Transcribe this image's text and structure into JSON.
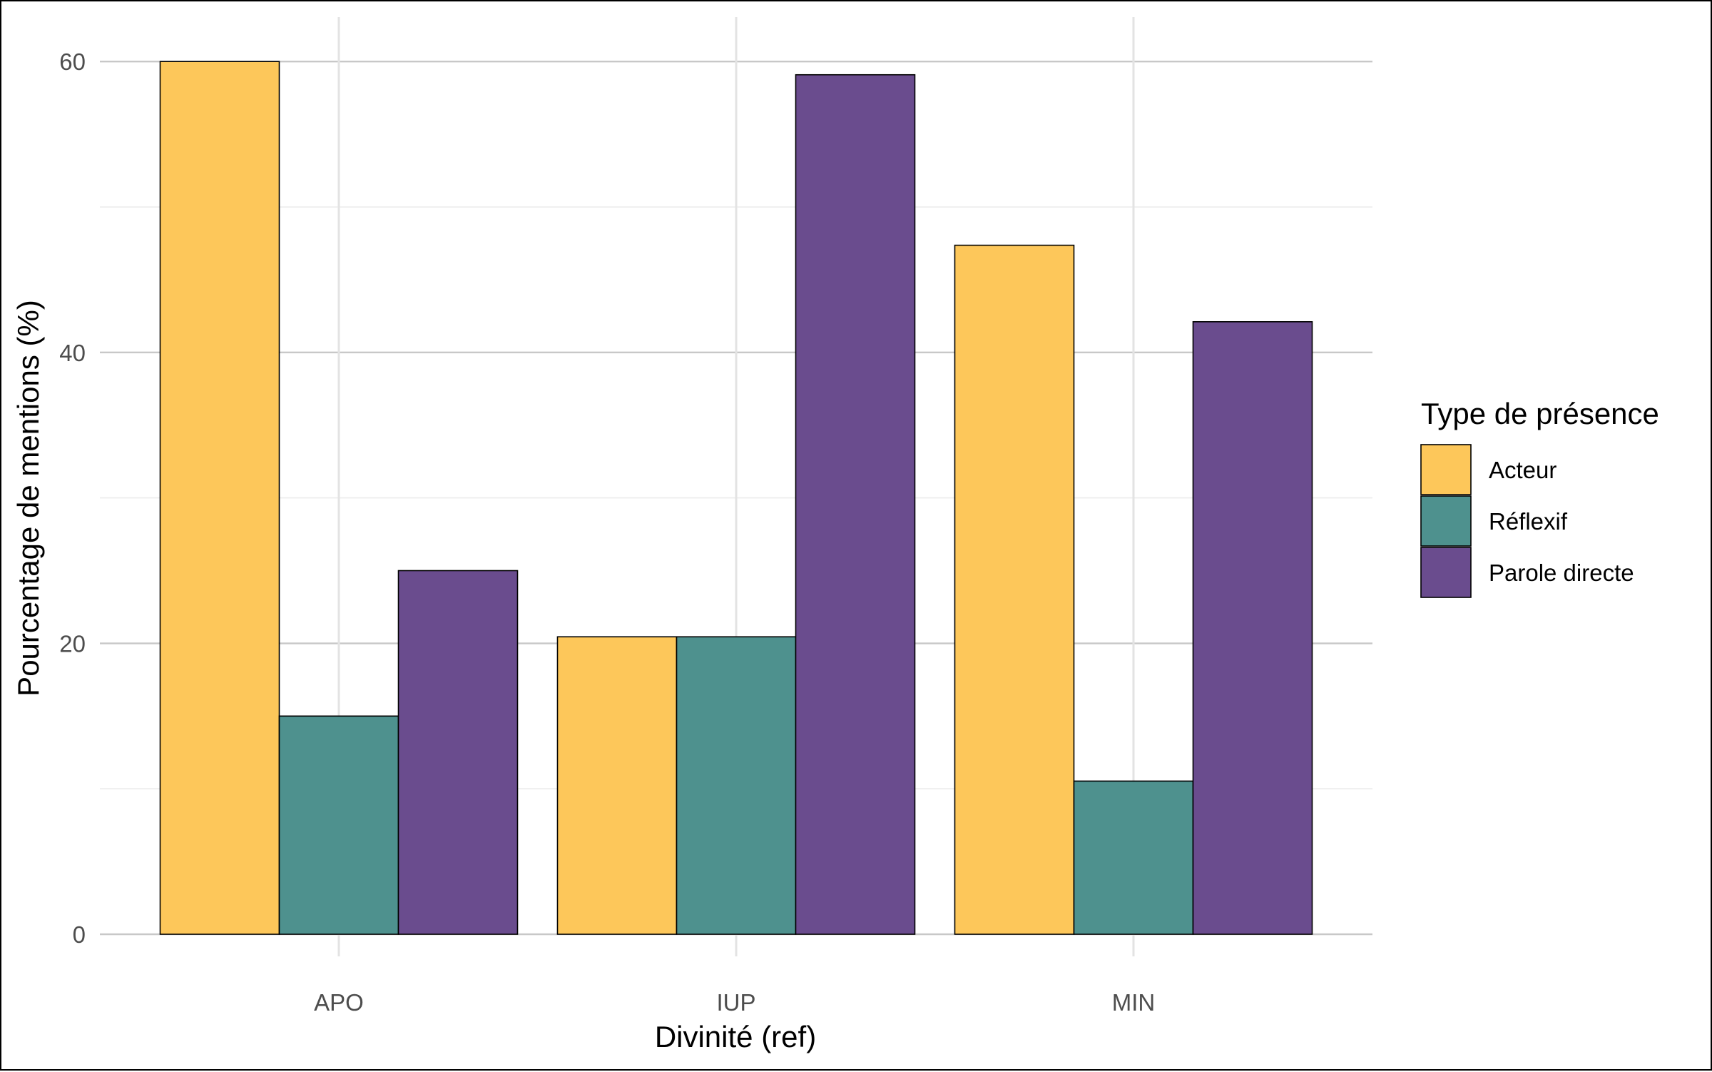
{
  "chart_data": {
    "type": "bar",
    "title": "",
    "xlabel": "Divinité (ref)",
    "ylabel": "Pourcentage de mentions (%)",
    "categories": [
      "APO",
      "IUP",
      "MIN"
    ],
    "ylim": [
      0,
      62
    ],
    "yticks": [
      0,
      20,
      40,
      60
    ],
    "grid": true,
    "legend_title": "Type de présence",
    "legend_position": "right",
    "series": [
      {
        "name": "Acteur",
        "color": "#FDC75A",
        "values": [
          60.0,
          20.45,
          47.37
        ]
      },
      {
        "name": "Réflexif",
        "color": "#4E918E",
        "values": [
          15.0,
          20.45,
          10.53
        ]
      },
      {
        "name": "Parole directe",
        "color": "#6A4C8E",
        "values": [
          25.0,
          59.09,
          42.11
        ]
      }
    ]
  }
}
